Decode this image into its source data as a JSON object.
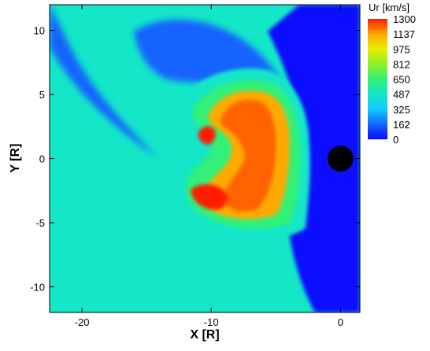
{
  "chart_data": {
    "type": "heatmap",
    "xlabel": "X [R]",
    "ylabel": "Y [R]",
    "xlim": [
      -22.5,
      1.5
    ],
    "ylim": [
      -12,
      12
    ],
    "x_ticks": [
      -20,
      -10,
      0
    ],
    "y_ticks": [
      10,
      5,
      0,
      -5,
      -10
    ],
    "x_tick_labels": [
      "-20",
      "-10",
      "0"
    ],
    "y_tick_labels": [
      "10",
      "5",
      "0",
      "-5",
      "-10"
    ],
    "colorbar": {
      "title": "Ur [km/s]",
      "levels": [
        1300,
        1137,
        975,
        812,
        650,
        487,
        325,
        162,
        0
      ],
      "level_labels": [
        "1300",
        "1137",
        "975",
        "812",
        "650",
        "487",
        "325",
        "162",
        "0"
      ],
      "range": [
        0,
        1300
      ],
      "colors": [
        "#0a0aff",
        "#1464ff",
        "#14c8ff",
        "#14e6c8",
        "#32f078",
        "#8cf028",
        "#e6f000",
        "#ffaa00",
        "#ff6400",
        "#ff1e00"
      ]
    },
    "planet": {
      "x": 0,
      "y": 0,
      "radius": 1,
      "color": "#000000"
    },
    "regions": [
      {
        "name": "background",
        "level": 487
      },
      {
        "name": "upstream-low-band",
        "level": 240
      },
      {
        "name": "dayside-magnetosheath",
        "level": 40
      },
      {
        "name": "outer-shell",
        "level": 400
      },
      {
        "name": "mid-shell",
        "level": 640
      },
      {
        "name": "inner-core",
        "level": 980
      },
      {
        "name": "core-hot",
        "level": 1080
      },
      {
        "name": "jet-north",
        "level": 1300
      },
      {
        "name": "jet-south",
        "level": 1300
      }
    ]
  }
}
